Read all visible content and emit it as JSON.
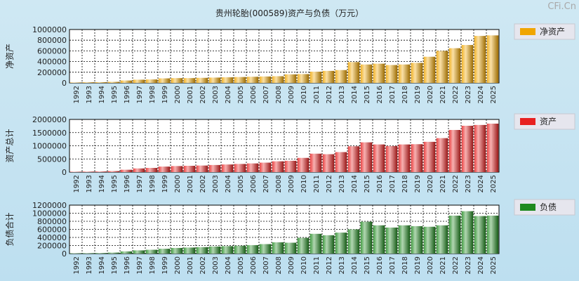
{
  "title": "贵州轮胎(000589)资产与负债（万元）",
  "watermark": "CFi.Cn",
  "chart_data": [
    {
      "type": "bar",
      "ylabel": "净资产",
      "legend": "净资产",
      "color": "#f0a500",
      "ylim": [
        0,
        1000000
      ],
      "yticks": [
        0,
        200000,
        400000,
        600000,
        800000,
        1000000
      ],
      "grid": true,
      "legend_position": "right",
      "categories": [
        "1992",
        "1993",
        "1994",
        "1995",
        "1996",
        "1997",
        "1998",
        "1999",
        "2000",
        "2001",
        "2002",
        "2003",
        "2004",
        "2005",
        "2006",
        "2007",
        "2008",
        "2009",
        "2010",
        "2011",
        "2012",
        "2013",
        "2014",
        "2015",
        "2016",
        "2017",
        "2018",
        "2019",
        "2020",
        "2021",
        "2022",
        "2023",
        "2024",
        "2025"
      ],
      "values": [
        8000,
        12000,
        14000,
        20000,
        45000,
        60000,
        65000,
        85000,
        90000,
        90000,
        95000,
        100000,
        105000,
        110000,
        115000,
        120000,
        125000,
        160000,
        165000,
        210000,
        225000,
        240000,
        390000,
        345000,
        360000,
        335000,
        345000,
        375000,
        490000,
        600000,
        650000,
        710000,
        880000,
        890000
      ]
    },
    {
      "type": "bar",
      "ylabel": "资产总计",
      "legend": "资产",
      "color": "#e82020",
      "ylim": [
        0,
        2000000
      ],
      "yticks": [
        0,
        500000,
        1000000,
        1500000,
        2000000
      ],
      "grid": true,
      "legend_position": "right",
      "categories": [
        "1992",
        "1993",
        "1994",
        "1995",
        "1996",
        "1997",
        "1998",
        "1999",
        "2000",
        "2001",
        "2002",
        "2003",
        "2004",
        "2005",
        "2006",
        "2007",
        "2008",
        "2009",
        "2010",
        "2011",
        "2012",
        "2013",
        "2014",
        "2015",
        "2016",
        "2017",
        "2018",
        "2019",
        "2020",
        "2021",
        "2022",
        "2023",
        "2024",
        "2025"
      ],
      "values": [
        15000,
        20000,
        25000,
        40000,
        90000,
        140000,
        160000,
        210000,
        230000,
        240000,
        250000,
        270000,
        290000,
        310000,
        330000,
        360000,
        410000,
        430000,
        540000,
        700000,
        680000,
        760000,
        980000,
        1130000,
        1050000,
        990000,
        1050000,
        1060000,
        1150000,
        1290000,
        1600000,
        1760000,
        1790000,
        1840000
      ]
    },
    {
      "type": "bar",
      "ylabel": "负债合计",
      "legend": "负债",
      "color": "#1f8a1f",
      "ylim": [
        0,
        1200000
      ],
      "yticks": [
        0,
        200000,
        400000,
        600000,
        800000,
        1000000,
        1200000
      ],
      "grid": true,
      "legend_position": "right",
      "categories": [
        "1992",
        "1993",
        "1994",
        "1995",
        "1996",
        "1997",
        "1998",
        "1999",
        "2000",
        "2001",
        "2002",
        "2003",
        "2004",
        "2005",
        "2006",
        "2007",
        "2008",
        "2009",
        "2010",
        "2011",
        "2012",
        "2013",
        "2014",
        "2015",
        "2016",
        "2017",
        "2018",
        "2019",
        "2020",
        "2021",
        "2022",
        "2023",
        "2024",
        "2025"
      ],
      "values": [
        10000,
        12000,
        15000,
        25000,
        55000,
        80000,
        95000,
        120000,
        140000,
        150000,
        160000,
        175000,
        185000,
        195000,
        210000,
        235000,
        280000,
        270000,
        390000,
        490000,
        455000,
        520000,
        600000,
        790000,
        700000,
        645000,
        700000,
        680000,
        665000,
        700000,
        940000,
        1050000,
        930000,
        940000
      ]
    }
  ]
}
